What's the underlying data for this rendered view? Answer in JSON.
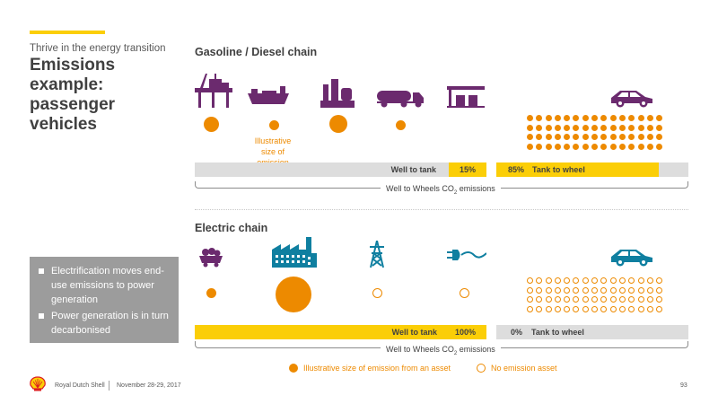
{
  "header": {
    "subtitle": "Thrive in the energy transition",
    "title": "Emissions example: passenger vehicles"
  },
  "gasoline": {
    "label": "Gasoline / Diesel chain",
    "note": "Illustrative size of emission",
    "well_to_tank_label": "Well to tank",
    "well_to_tank_pct": "15%",
    "tank_to_wheel_pct": "85%",
    "tank_to_wheel_label": "Tank to wheel",
    "bracket_label": "Well to Wheels CO",
    "bracket_sub": "2",
    "bracket_suffix": " emissions",
    "icons": [
      "oil-platform-icon",
      "tanker-ship-icon",
      "refinery-icon",
      "fuel-truck-icon",
      "gas-station-icon",
      "car-icon"
    ],
    "dot_sizes": [
      "medium",
      "small",
      "large",
      "small"
    ]
  },
  "electric": {
    "label": "Electric chain",
    "well_to_tank_label": "Well to tank",
    "well_to_tank_pct": "100%",
    "tank_to_wheel_pct": "0%",
    "tank_to_wheel_label": "Tank to wheel",
    "bracket_label": "Well to Wheels CO",
    "bracket_sub": "2",
    "bracket_suffix": " emissions",
    "icons": [
      "coal-cart-icon",
      "power-plant-icon",
      "power-pylon-icon",
      "plug-icon",
      "electric-car-icon"
    ]
  },
  "bullets": [
    "Electrification moves end-use emissions to power generation",
    "Power generation is in turn decarbonised"
  ],
  "legend": {
    "filled": "Illustrative size of emission from an asset",
    "hollow": "No emission asset"
  },
  "footer": {
    "company": "Royal Dutch Shell",
    "date": "November 28-29, 2017",
    "page": "93"
  },
  "colors": {
    "accent_yellow": "#fbce07",
    "emission_orange": "#ed8a00",
    "icon_purple": "#6b2a6e",
    "icon_teal": "#0f7fa0",
    "bar_gray": "#dddddd"
  }
}
